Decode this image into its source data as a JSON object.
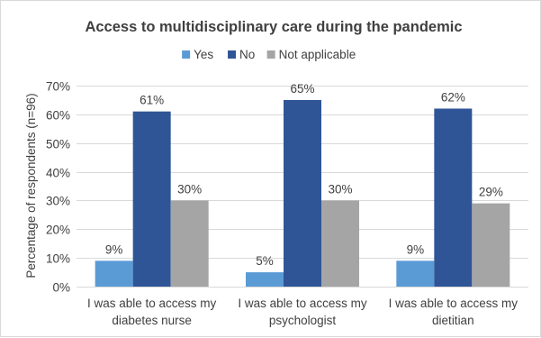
{
  "chart_data": {
    "type": "bar",
    "title": "Access to multidisciplinary care during the pandemic",
    "ylabel": "Percentage of respondents (n=96)",
    "xlabel": "",
    "categories": [
      [
        "I was able to access my",
        "diabetes nurse"
      ],
      [
        "I was able to access my",
        "psychologist"
      ],
      [
        "I was able to access my",
        "dietitian"
      ]
    ],
    "series": [
      {
        "name": "Yes",
        "color": "#5b9bd5",
        "values": [
          9,
          5,
          9
        ],
        "labels": [
          "9%",
          "5%",
          "9%"
        ]
      },
      {
        "name": "No",
        "color": "#2f5597",
        "values": [
          61,
          65,
          62
        ],
        "labels": [
          "61%",
          "65%",
          "62%"
        ]
      },
      {
        "name": "Not applicable",
        "color": "#a5a5a5",
        "values": [
          30,
          30,
          29
        ],
        "labels": [
          "30%",
          "30%",
          "29%"
        ]
      }
    ],
    "ylim": [
      0,
      70
    ],
    "yticks": [
      0,
      10,
      20,
      30,
      40,
      50,
      60,
      70
    ],
    "ytick_labels": [
      "0%",
      "10%",
      "20%",
      "30%",
      "40%",
      "50%",
      "60%",
      "70%"
    ],
    "grid": true,
    "legend_position": "top-center"
  }
}
